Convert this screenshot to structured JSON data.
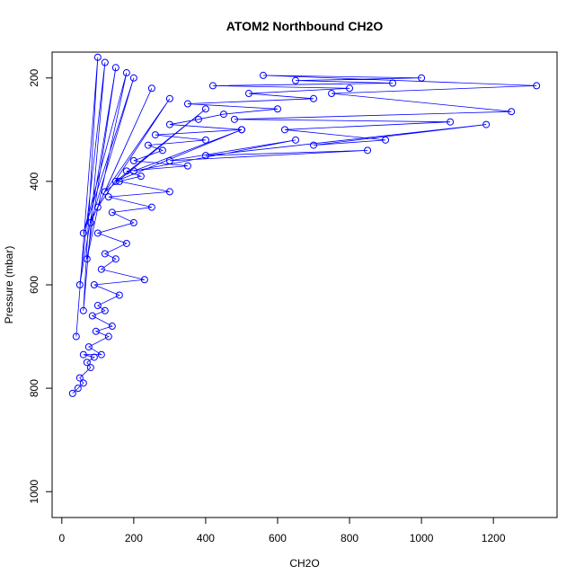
{
  "chart_data": {
    "type": "scatter",
    "title": "ATOM2 Northbound CH2O",
    "x_label": "CH2O",
    "y_label": "Pressure (mbar)",
    "color": "#0000ff",
    "connect": true,
    "xlim": [
      -27,
      1377
    ],
    "ylim": [
      1050,
      150
    ],
    "xticks": [
      0,
      200,
      400,
      600,
      800,
      1000,
      1200
    ],
    "yticks": [
      200,
      400,
      600,
      800,
      1000
    ],
    "x": [
      30,
      45,
      60,
      50,
      80,
      70,
      90,
      60,
      110,
      75,
      130,
      95,
      140,
      85,
      120,
      100,
      160,
      90,
      230,
      110,
      150,
      120,
      180,
      100,
      200,
      140,
      250,
      130,
      300,
      160,
      220,
      180,
      350,
      200,
      280,
      240,
      400,
      260,
      500,
      300,
      380,
      450,
      600,
      350,
      700,
      520,
      800,
      420,
      920,
      650,
      1000,
      560,
      1320,
      750,
      1250,
      480,
      1080,
      620,
      900,
      700,
      1180,
      400,
      850,
      300,
      650,
      200,
      500,
      150,
      400,
      120,
      300,
      100,
      250,
      80,
      200,
      60,
      180,
      70,
      150,
      50,
      120,
      60,
      100,
      40
    ],
    "y": [
      810,
      800,
      790,
      780,
      760,
      750,
      740,
      735,
      735,
      720,
      700,
      690,
      680,
      660,
      650,
      640,
      620,
      600,
      590,
      570,
      550,
      540,
      520,
      500,
      480,
      460,
      450,
      430,
      420,
      400,
      390,
      380,
      370,
      360,
      340,
      330,
      320,
      310,
      300,
      290,
      280,
      270,
      260,
      250,
      240,
      230,
      220,
      215,
      210,
      205,
      200,
      195,
      215,
      230,
      265,
      280,
      285,
      300,
      320,
      330,
      290,
      350,
      340,
      360,
      320,
      380,
      300,
      400,
      260,
      420,
      240,
      450,
      220,
      480,
      200,
      500,
      190,
      550,
      180,
      600,
      170,
      650,
      160,
      700
    ]
  }
}
